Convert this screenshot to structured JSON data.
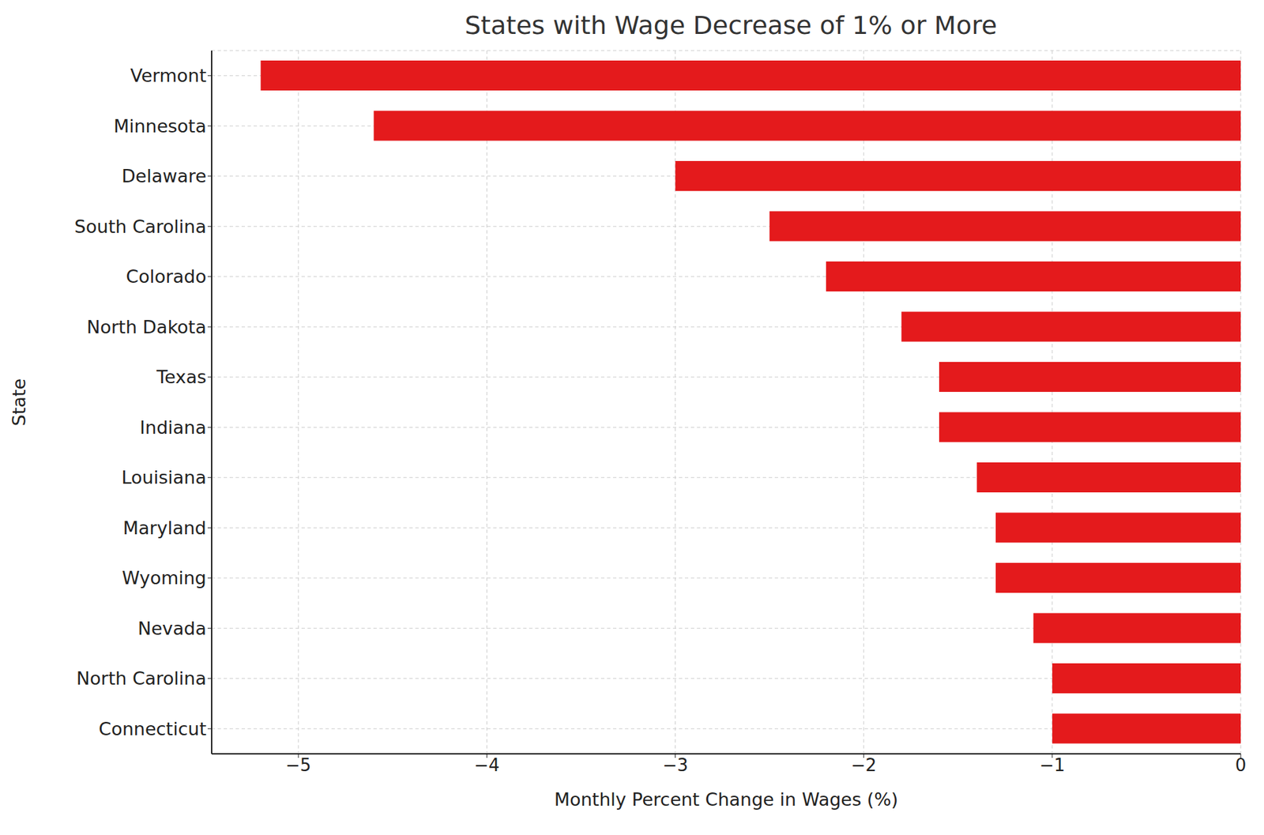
{
  "chart_data": {
    "type": "bar",
    "orientation": "horizontal",
    "title": "States with Wage Decrease of 1% or More",
    "x_label": "Monthly Percent Change in Wages (%)",
    "y_label": "State",
    "categories": [
      "Vermont",
      "Minnesota",
      "Delaware",
      "South Carolina",
      "Colorado",
      "North Dakota",
      "Texas",
      "Indiana",
      "Louisiana",
      "Maryland",
      "Wyoming",
      "Nevada",
      "North Carolina",
      "Connecticut"
    ],
    "values": [
      -5.2,
      -4.6,
      -3.0,
      -2.5,
      -2.2,
      -1.8,
      -1.6,
      -1.6,
      -1.4,
      -1.3,
      -1.3,
      -1.1,
      -1.0,
      -1.0
    ],
    "color": "#e41a1c",
    "xlim": [
      -5.46,
      0
    ],
    "xticks": [
      {
        "value": -5,
        "label": "−5"
      },
      {
        "value": -4,
        "label": "−4"
      },
      {
        "value": -3,
        "label": "−3"
      },
      {
        "value": -2,
        "label": "−2"
      },
      {
        "value": -1,
        "label": "−1"
      },
      0
    ],
    "grid": true
  }
}
